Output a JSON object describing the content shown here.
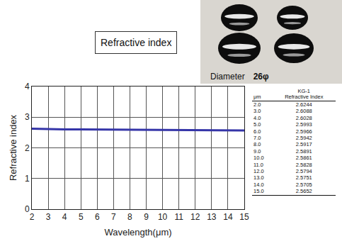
{
  "chart_data": {
    "type": "line",
    "title": "Refractive index",
    "x_label": "Wavelength(μm)",
    "y_label": "Refractive index",
    "x": [
      2,
      3,
      4,
      5,
      6,
      7,
      8,
      9,
      10,
      11,
      12,
      13,
      14,
      15
    ],
    "values": [
      2.6244,
      2.6088,
      2.6028,
      2.5993,
      2.5966,
      2.5942,
      2.5917,
      2.5891,
      2.5861,
      2.5828,
      2.5794,
      2.5751,
      2.5705,
      2.5652
    ],
    "color": "#3535a8",
    "xlim": [
      2,
      15
    ],
    "xticks": [
      2,
      3,
      4,
      5,
      6,
      7,
      8,
      9,
      10,
      11,
      12,
      13,
      14,
      15
    ],
    "ylim": [
      0,
      4
    ],
    "yticks": [
      0,
      1,
      2,
      3,
      4
    ],
    "grid": true
  },
  "photo": {
    "caption": "Diameter",
    "size": "26φ"
  },
  "table": {
    "header": [
      [
        "μm"
      ],
      [
        "KG-1",
        "Refractive Index"
      ]
    ],
    "rows": [
      [
        "2.0",
        "2.6244"
      ],
      [
        "3.0",
        "2.6088"
      ],
      [
        "4.0",
        "2.6028"
      ],
      [
        "5.0",
        "2.5993"
      ],
      [
        "6.0",
        "2.5966"
      ],
      [
        "7.0",
        "2.5942"
      ],
      [
        "8.0",
        "2.5917"
      ],
      [
        "9.0",
        "2.5891"
      ],
      [
        "10.0",
        "2.5861"
      ],
      [
        "11.0",
        "2.5828"
      ],
      [
        "12.0",
        "2.5794"
      ],
      [
        "13.0",
        "2.5751"
      ],
      [
        "14.0",
        "2.5705"
      ],
      [
        "15.0",
        "2.5652"
      ]
    ]
  }
}
